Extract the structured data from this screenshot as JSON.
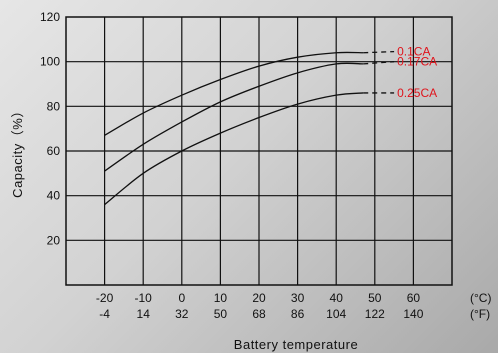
{
  "chart_data": {
    "type": "line",
    "xlabel": "Battery temperature",
    "ylabel": "Capacity（%）",
    "xlim": [
      -30,
      70
    ],
    "ylim": [
      0,
      120
    ],
    "y_ticks": [
      20,
      40,
      60,
      80,
      100,
      120
    ],
    "x_ticks_c": [
      -20,
      -10,
      0,
      10,
      20,
      30,
      40,
      50,
      60
    ],
    "x_ticks_f": [
      -4,
      14,
      32,
      50,
      68,
      86,
      104,
      122,
      140
    ],
    "unit_c": "(°C)",
    "unit_f": "(°F)",
    "grid": true,
    "label_color": "#e0141c",
    "series": [
      {
        "name": "0.1CA",
        "x": [
          -20,
          -10,
          0,
          10,
          20,
          30,
          40,
          47
        ],
        "y": [
          67,
          77,
          85,
          92,
          98,
          102,
          104,
          104
        ],
        "dashed_x": [
          47,
          55
        ],
        "dashed_y": [
          104,
          104.5
        ]
      },
      {
        "name": "0.17CA",
        "x": [
          -20,
          -10,
          0,
          10,
          20,
          30,
          40,
          47
        ],
        "y": [
          51,
          63,
          73,
          82,
          89,
          95,
          99,
          99
        ],
        "dashed_x": [
          47,
          55
        ],
        "dashed_y": [
          99,
          100
        ]
      },
      {
        "name": "0.25CA",
        "x": [
          -20,
          -10,
          0,
          10,
          20,
          30,
          40,
          47
        ],
        "y": [
          36,
          50,
          60,
          68,
          75,
          81,
          85,
          86
        ],
        "dashed_x": [
          47,
          55
        ],
        "dashed_y": [
          86,
          86
        ]
      }
    ]
  }
}
